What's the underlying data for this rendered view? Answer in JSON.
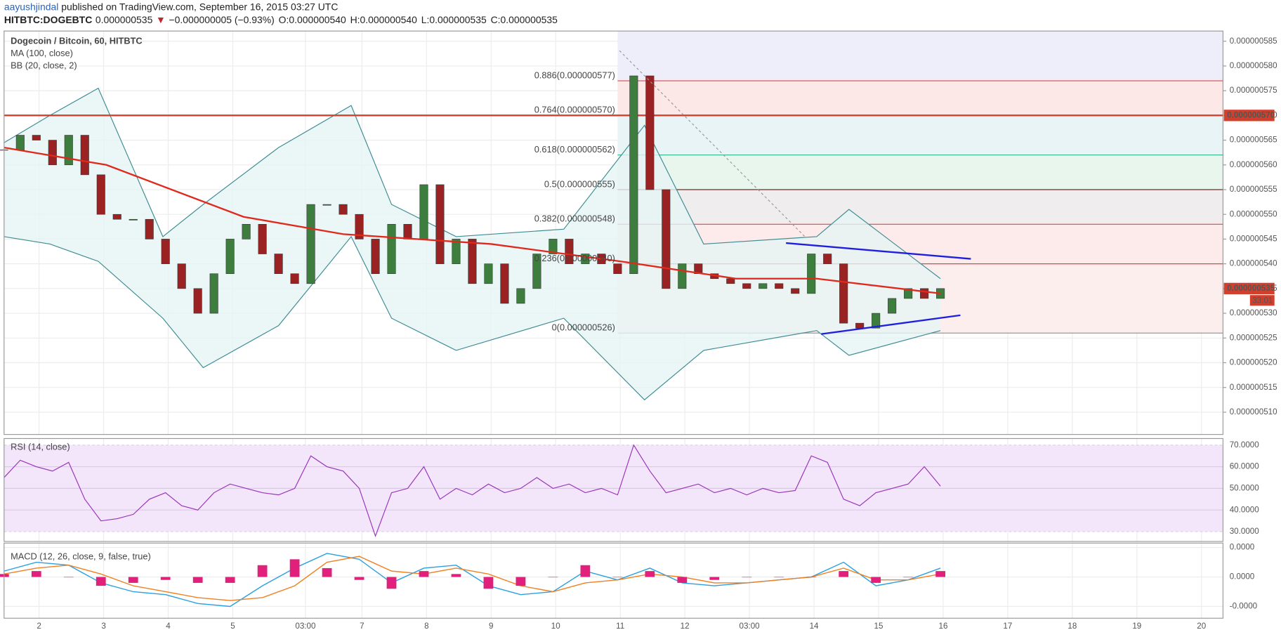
{
  "header": {
    "author": "aayushjindal",
    "published": " published on TradingView.com, September 16, 2015 03:27 UTC",
    "symbol": "HITBTC:DOGEBTC",
    "last": "0.000000535",
    "arrow": "▼",
    "change": "−0.000000005 (−0.93%)",
    "open": "O:0.000000540",
    "high": "H:0.000000540",
    "low": "L:0.000000535",
    "close": "C:0.000000535"
  },
  "chart_data": {
    "type": "candlestick",
    "title": "Dogecoin / Bitcoin, 60, HITBTC",
    "xlim": [
      11,
      464
    ],
    "xticks": [
      {
        "value": 24,
        "label": "2"
      },
      {
        "value": 48,
        "label": "3"
      },
      {
        "value": 72,
        "label": "4"
      },
      {
        "value": 96,
        "label": "5"
      },
      {
        "value": 123,
        "label": "03:00"
      },
      {
        "value": 144,
        "label": "7"
      },
      {
        "value": 168,
        "label": "8"
      },
      {
        "value": 192,
        "label": "9"
      },
      {
        "value": 216,
        "label": "10"
      },
      {
        "value": 240,
        "label": "11"
      },
      {
        "value": 264,
        "label": "12"
      },
      {
        "value": 288,
        "label": "03:00"
      },
      {
        "value": 312,
        "label": "14"
      },
      {
        "value": 336,
        "label": "15"
      },
      {
        "value": 360,
        "label": "16"
      },
      {
        "value": 384,
        "label": "17"
      },
      {
        "value": 408,
        "label": "18"
      },
      {
        "value": 432,
        "label": "19"
      },
      {
        "value": 456,
        "label": "20"
      }
    ],
    "ylim": [
      5.055e-07,
      5.8706e-07
    ],
    "yticks": [
      {
        "value": 5.1e-07,
        "label": "0.000000510"
      },
      {
        "value": 5.15e-07,
        "label": "0.000000515"
      },
      {
        "value": 5.2e-07,
        "label": "0.000000520"
      },
      {
        "value": 5.25e-07,
        "label": "0.000000525"
      },
      {
        "value": 5.3e-07,
        "label": "0.000000530"
      },
      {
        "value": 5.35e-07,
        "label": "0.000000535"
      },
      {
        "value": 5.4e-07,
        "label": "0.000000540"
      },
      {
        "value": 5.45e-07,
        "label": "0.000000545"
      },
      {
        "value": 5.5e-07,
        "label": "0.000000550"
      },
      {
        "value": 5.55e-07,
        "label": "0.000000555"
      },
      {
        "value": 5.6e-07,
        "label": "0.000000560"
      },
      {
        "value": 5.65e-07,
        "label": "0.000000565"
      },
      {
        "value": 5.7e-07,
        "label": "0.000000570"
      },
      {
        "value": 5.75e-07,
        "label": "0.000000575"
      },
      {
        "value": 5.8e-07,
        "label": "0.000000580"
      },
      {
        "value": 5.85e-07,
        "label": "0.000000585"
      }
    ],
    "grid": true,
    "up_color": "#3d7d3d",
    "down_color": "#9b2222",
    "x": [
      11,
      17,
      23,
      29,
      35,
      41,
      47,
      53,
      59,
      65,
      71,
      77,
      83,
      89,
      95,
      101,
      107,
      113,
      119,
      125,
      131,
      137,
      143,
      149,
      155,
      161,
      167,
      173,
      179,
      185,
      191,
      197,
      203,
      209,
      215,
      221,
      227,
      233,
      239,
      245,
      251,
      257,
      263,
      269,
      275,
      281,
      287,
      293,
      299,
      305,
      311,
      317,
      323,
      329,
      335,
      341,
      347,
      353,
      359
    ],
    "values": [
      5.63e-07,
      5.66e-07,
      5.65e-07,
      5.6e-07,
      5.66e-07,
      5.58e-07,
      5.5e-07,
      5.49e-07,
      5.49e-07,
      5.45e-07,
      5.4e-07,
      5.35e-07,
      5.3e-07,
      5.38e-07,
      5.45e-07,
      5.48e-07,
      5.42e-07,
      5.38e-07,
      5.36e-07,
      5.52e-07,
      5.52e-07,
      5.5e-07,
      5.45e-07,
      5.38e-07,
      5.48e-07,
      5.45e-07,
      5.56e-07,
      5.4e-07,
      5.45e-07,
      5.36e-07,
      5.4e-07,
      5.32e-07,
      5.35e-07,
      5.42e-07,
      5.45e-07,
      5.4e-07,
      5.42e-07,
      5.4e-07,
      5.38e-07,
      5.78e-07,
      5.55e-07,
      5.35e-07,
      5.4e-07,
      5.38e-07,
      5.37e-07,
      5.36e-07,
      5.35e-07,
      5.36e-07,
      5.35e-07,
      5.34e-07,
      5.42e-07,
      5.4e-07,
      5.28e-07,
      5.27e-07,
      5.3e-07,
      5.33e-07,
      5.35e-07,
      5.33e-07,
      5.35e-07
    ],
    "ma": {
      "name": "MA (100, close)",
      "color": "#e0281c",
      "x": [
        11,
        49,
        100,
        137,
        192,
        240,
        283,
        313,
        359
      ],
      "values": [
        5.635e-07,
        5.6e-07,
        5.495e-07,
        5.46e-07,
        5.44e-07,
        5.405e-07,
        5.37e-07,
        5.37e-07,
        5.34e-07
      ]
    },
    "bb": {
      "name": "BB (20, close, 2)",
      "color": "#3e8c94",
      "fill": "#e6f4f4",
      "x": [
        11,
        28,
        46,
        70,
        85,
        113,
        140,
        155,
        179,
        219,
        249,
        271,
        313,
        325,
        359
      ],
      "upper": [
        5.645e-07,
        5.7e-07,
        5.755e-07,
        5.455e-07,
        5.52e-07,
        5.635e-07,
        5.72e-07,
        5.52e-07,
        5.455e-07,
        5.47e-07,
        5.68e-07,
        5.44e-07,
        5.455e-07,
        5.51e-07,
        5.37e-07
      ],
      "lower": [
        5.455e-07,
        5.44e-07,
        5.405e-07,
        5.29e-07,
        5.19e-07,
        5.275e-07,
        5.455e-07,
        5.29e-07,
        5.225e-07,
        5.29e-07,
        5.125e-07,
        5.225e-07,
        5.265e-07,
        5.215e-07,
        5.265e-07
      ]
    },
    "fib_start": 239,
    "fib": [
      {
        "label": "0.886(0.000000577)",
        "value": 5.77e-07,
        "color": "#e04545",
        "fill": "#fde8e8"
      },
      {
        "label": "0.764(0.000000570)",
        "value": 5.7e-07,
        "color": "#5a9cc5",
        "fill": "#e8f4f6"
      },
      {
        "label": "0.618(0.000000562)",
        "value": 5.62e-07,
        "color": "#2bb58a",
        "fill": "#e8f6ee"
      },
      {
        "label": "0.5(0.000000555)",
        "value": 5.55e-07,
        "color": "#6b2e2e",
        "fill": "#efeded"
      },
      {
        "label": "0.382(0.000000548)",
        "value": 5.48e-07,
        "color": "#e04545",
        "fill": "#fdeaea"
      },
      {
        "label": "0.236(0.000000540)",
        "value": 5.4e-07,
        "color": "#e04545",
        "fill": "#fdeeee"
      },
      {
        "label": "0(0.000000526)",
        "value": 5.26e-07,
        "color": "#999999",
        "fill": "#f1eef8"
      }
    ],
    "fib_top_fill": "#eeeefa",
    "level": {
      "label": "0.000000570",
      "value": 5.7e-07,
      "color": "#d0402c"
    },
    "price_marker": {
      "label": "0.000000535",
      "value": 5.35e-07,
      "countdown": "33:01",
      "color": "#d0402c"
    },
    "drawings": [
      {
        "color": "#1f1fe0",
        "x": [
          301.6,
          370.3
        ],
        "values": [
          5.442e-07,
          5.41e-07
        ]
      },
      {
        "color": "#1f1fe0",
        "x": [
          314.7,
          366.4
        ],
        "values": [
          5.258e-07,
          5.296e-07
        ]
      },
      {
        "color": "#999999",
        "x": [
          239.7,
          308.6
        ],
        "values": [
          5.831e-07,
          5.455e-07
        ]
      }
    ]
  },
  "rsi": {
    "name": "RSI (14, close)",
    "color": "#9933bb",
    "band_fill": "#f3e6fa",
    "ylim": [
      25.5,
      73
    ],
    "yticks": [
      {
        "value": 70,
        "label": "70.0000"
      },
      {
        "value": 60,
        "label": "60.0000"
      },
      {
        "value": 50,
        "label": "50.0000"
      },
      {
        "value": 40,
        "label": "40.0000"
      },
      {
        "value": 30,
        "label": "30.0000"
      }
    ],
    "values": [
      55,
      63,
      60,
      58,
      62,
      45,
      35,
      36,
      38,
      45,
      48,
      42,
      40,
      48,
      52,
      50,
      48,
      47,
      50,
      65,
      60,
      58,
      50,
      28,
      48,
      50,
      60,
      45,
      50,
      47,
      52,
      48,
      50,
      55,
      50,
      52,
      48,
      50,
      47,
      70,
      58,
      48,
      50,
      52,
      48,
      50,
      47,
      50,
      48,
      49,
      65,
      62,
      45,
      42,
      48,
      50,
      52,
      60,
      51
    ]
  },
  "macd": {
    "name": "MACD (12, 26, close, 9, false, true)",
    "ylim": [
      -1.4e-09,
      1.15e-09
    ],
    "yticks": [
      {
        "value": 1e-09,
        "label": "0.0000"
      },
      {
        "value": 0,
        "label": "0.0000"
      },
      {
        "value": -1e-09,
        "label": "-0.0000"
      }
    ],
    "x": [
      11,
      23,
      35,
      47,
      59,
      71,
      83,
      95,
      107,
      119,
      131,
      143,
      155,
      167,
      179,
      191,
      203,
      215,
      227,
      239,
      251,
      263,
      275,
      287,
      299,
      311,
      323,
      335,
      347,
      359
    ],
    "series": [
      {
        "name": "MACD",
        "color": "#2aa0e0",
        "values": [
          2e-10,
          5e-10,
          4e-10,
          -2e-10,
          -5e-10,
          -6e-10,
          -9e-10,
          -1e-09,
          -3e-10,
          3e-10,
          8e-10,
          6e-10,
          -2e-10,
          3e-10,
          4e-10,
          -3e-10,
          -6e-10,
          -5e-10,
          2e-10,
          -1e-10,
          3e-10,
          -2e-10,
          -3e-10,
          -2e-10,
          -1e-10,
          0,
          5e-10,
          -3e-10,
          -1e-10,
          3e-10
        ]
      },
      {
        "name": "Signal",
        "color": "#f08020",
        "values": [
          1e-10,
          3e-10,
          4e-10,
          1e-10,
          -3e-10,
          -5e-10,
          -7e-10,
          -8e-10,
          -7e-10,
          -3e-10,
          5e-10,
          7e-10,
          2e-10,
          1e-10,
          3e-10,
          1e-10,
          -3e-10,
          -5e-10,
          -2e-10,
          -1e-10,
          1e-10,
          0,
          -2e-10,
          -2e-10,
          -1e-10,
          0,
          3e-10,
          -1e-10,
          -1e-10,
          1e-10
        ]
      },
      {
        "name": "Histogram",
        "color": "#e0207a",
        "values": [
          1e-10,
          2e-10,
          0,
          -3e-10,
          -2e-10,
          -1e-10,
          -2e-10,
          -2e-10,
          4e-10,
          6e-10,
          3e-10,
          -1e-10,
          -4e-10,
          2e-10,
          1e-10,
          -4e-10,
          -3e-10,
          0,
          4e-10,
          0,
          2e-10,
          -2e-10,
          -1e-10,
          0,
          0,
          0,
          2e-10,
          -2e-10,
          0,
          2e-10
        ]
      }
    ]
  }
}
